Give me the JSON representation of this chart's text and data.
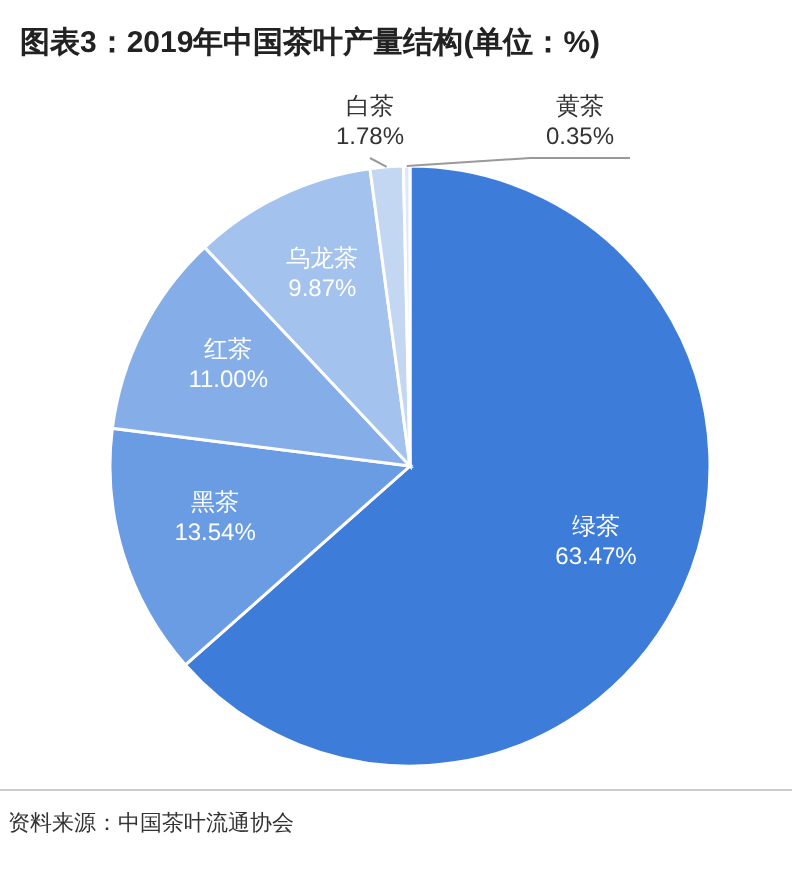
{
  "chart_data": {
    "type": "pie",
    "title": "图表3：2019年中国茶叶产量结构(单位：%)",
    "categories": [
      "绿茶",
      "黑茶",
      "红茶",
      "乌龙茶",
      "白茶",
      "黄茶"
    ],
    "values": [
      63.47,
      13.54,
      11.0,
      9.87,
      1.78,
      0.35
    ],
    "value_labels": [
      "63.47%",
      "13.54%",
      "11.00%",
      "9.87%",
      "1.78%",
      "0.35%"
    ],
    "colors": [
      "#3d7cd9",
      "#699ce2",
      "#85aee8",
      "#a3c2ee",
      "#c3d7f3",
      "#dde8f8"
    ],
    "annotations": [
      "资料来源：中国茶叶流通协会"
    ]
  }
}
